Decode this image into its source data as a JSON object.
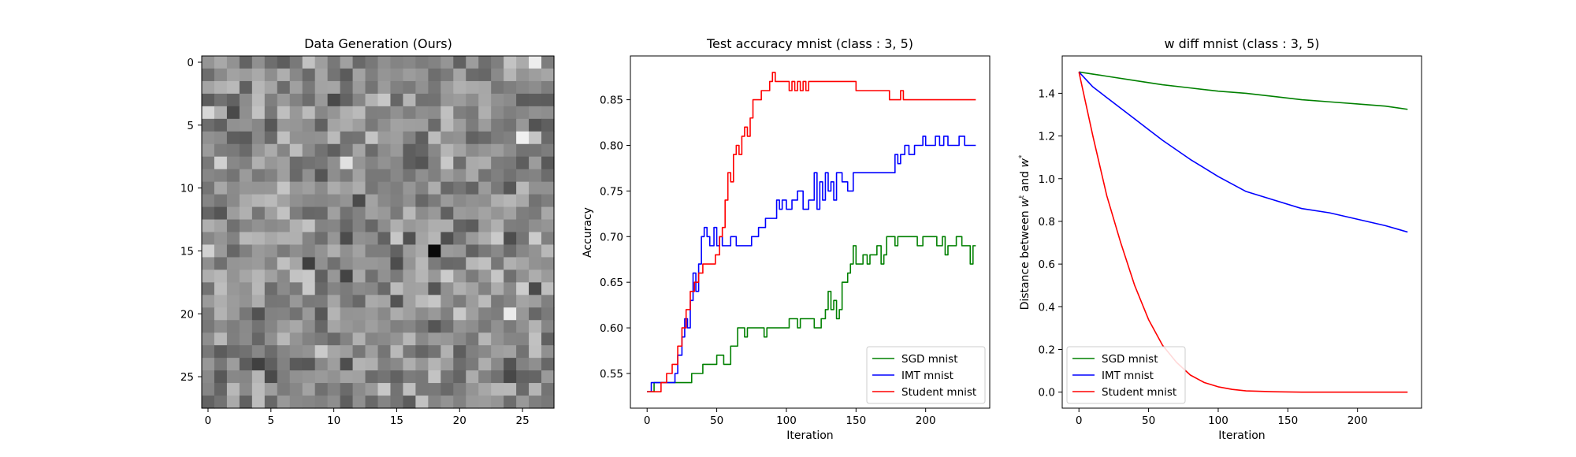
{
  "colors": {
    "sgd": "#008000",
    "imt": "#0000ff",
    "student": "#ff0000"
  },
  "chart_data": [
    {
      "type": "heatmap",
      "title": "Data Generation (Ours)",
      "rows": 28,
      "cols": 28,
      "colormap": "gray",
      "xticks": [
        "0",
        "5",
        "10",
        "15",
        "20",
        "25"
      ],
      "yticks": [
        "0",
        "5",
        "10",
        "15",
        "20",
        "25"
      ],
      "seed": 1337
    },
    {
      "type": "line",
      "title": "Test accuracy mnist (class : 3, 5)",
      "xlabel": "Iteration",
      "ylabel": "Accuracy",
      "xlim": [
        -12,
        246
      ],
      "ylim": [
        0.512,
        0.898
      ],
      "xticks": [
        "0",
        "50",
        "100",
        "150",
        "200"
      ],
      "yticks": [
        "0.55",
        "0.60",
        "0.65",
        "0.70",
        "0.75",
        "0.80",
        "0.85"
      ],
      "legend": "lower-right",
      "series": [
        {
          "name": "SGD mnist",
          "color_key": "sgd",
          "style": "step",
          "points": [
            [
              0,
              0.53
            ],
            [
              5,
              0.54
            ],
            [
              10,
              0.54
            ],
            [
              30,
              0.54
            ],
            [
              32,
              0.55
            ],
            [
              38,
              0.55
            ],
            [
              40,
              0.56
            ],
            [
              48,
              0.56
            ],
            [
              50,
              0.57
            ],
            [
              55,
              0.56
            ],
            [
              60,
              0.58
            ],
            [
              65,
              0.6
            ],
            [
              70,
              0.59
            ],
            [
              72,
              0.6
            ],
            [
              82,
              0.6
            ],
            [
              84,
              0.59
            ],
            [
              86,
              0.6
            ],
            [
              100,
              0.6
            ],
            [
              102,
              0.61
            ],
            [
              108,
              0.6
            ],
            [
              110,
              0.61
            ],
            [
              118,
              0.61
            ],
            [
              120,
              0.6
            ],
            [
              125,
              0.61
            ],
            [
              128,
              0.62
            ],
            [
              130,
              0.64
            ],
            [
              132,
              0.62
            ],
            [
              134,
              0.63
            ],
            [
              136,
              0.61
            ],
            [
              138,
              0.62
            ],
            [
              140,
              0.65
            ],
            [
              144,
              0.66
            ],
            [
              146,
              0.67
            ],
            [
              148,
              0.69
            ],
            [
              150,
              0.67
            ],
            [
              155,
              0.68
            ],
            [
              158,
              0.67
            ],
            [
              160,
              0.68
            ],
            [
              165,
              0.69
            ],
            [
              168,
              0.67
            ],
            [
              170,
              0.68
            ],
            [
              172,
              0.7
            ],
            [
              178,
              0.69
            ],
            [
              180,
              0.7
            ],
            [
              192,
              0.7
            ],
            [
              194,
              0.69
            ],
            [
              198,
              0.7
            ],
            [
              206,
              0.7
            ],
            [
              208,
              0.69
            ],
            [
              212,
              0.7
            ],
            [
              214,
              0.68
            ],
            [
              216,
              0.69
            ],
            [
              220,
              0.69
            ],
            [
              222,
              0.7
            ],
            [
              226,
              0.69
            ],
            [
              230,
              0.69
            ],
            [
              232,
              0.67
            ],
            [
              234,
              0.69
            ],
            [
              236,
              0.69
            ]
          ]
        },
        {
          "name": "IMT mnist",
          "color_key": "imt",
          "style": "step",
          "points": [
            [
              0,
              0.53
            ],
            [
              3,
              0.54
            ],
            [
              18,
              0.54
            ],
            [
              20,
              0.55
            ],
            [
              22,
              0.57
            ],
            [
              25,
              0.59
            ],
            [
              27,
              0.61
            ],
            [
              29,
              0.6
            ],
            [
              31,
              0.63
            ],
            [
              33,
              0.66
            ],
            [
              35,
              0.64
            ],
            [
              37,
              0.67
            ],
            [
              39,
              0.7
            ],
            [
              41,
              0.71
            ],
            [
              43,
              0.7
            ],
            [
              45,
              0.69
            ],
            [
              48,
              0.71
            ],
            [
              50,
              0.69
            ],
            [
              52,
              0.7
            ],
            [
              54,
              0.69
            ],
            [
              58,
              0.69
            ],
            [
              60,
              0.7
            ],
            [
              64,
              0.69
            ],
            [
              70,
              0.69
            ],
            [
              75,
              0.7
            ],
            [
              80,
              0.71
            ],
            [
              85,
              0.72
            ],
            [
              90,
              0.72
            ],
            [
              93,
              0.74
            ],
            [
              95,
              0.73
            ],
            [
              97,
              0.74
            ],
            [
              100,
              0.73
            ],
            [
              104,
              0.74
            ],
            [
              108,
              0.75
            ],
            [
              112,
              0.73
            ],
            [
              116,
              0.74
            ],
            [
              120,
              0.77
            ],
            [
              122,
              0.73
            ],
            [
              124,
              0.76
            ],
            [
              126,
              0.74
            ],
            [
              128,
              0.77
            ],
            [
              130,
              0.75
            ],
            [
              132,
              0.76
            ],
            [
              134,
              0.74
            ],
            [
              136,
              0.77
            ],
            [
              140,
              0.76
            ],
            [
              144,
              0.75
            ],
            [
              148,
              0.77
            ],
            [
              152,
              0.77
            ],
            [
              160,
              0.77
            ],
            [
              170,
              0.77
            ],
            [
              176,
              0.77
            ],
            [
              178,
              0.79
            ],
            [
              180,
              0.78
            ],
            [
              182,
              0.79
            ],
            [
              185,
              0.8
            ],
            [
              188,
              0.79
            ],
            [
              192,
              0.8
            ],
            [
              198,
              0.81
            ],
            [
              200,
              0.8
            ],
            [
              204,
              0.8
            ],
            [
              207,
              0.81
            ],
            [
              210,
              0.8
            ],
            [
              213,
              0.81
            ],
            [
              216,
              0.8
            ],
            [
              220,
              0.8
            ],
            [
              224,
              0.81
            ],
            [
              228,
              0.8
            ],
            [
              232,
              0.8
            ],
            [
              234,
              0.8
            ],
            [
              236,
              0.8
            ]
          ]
        },
        {
          "name": "Student mnist",
          "color_key": "student",
          "style": "step",
          "points": [
            [
              0,
              0.53
            ],
            [
              8,
              0.53
            ],
            [
              10,
              0.54
            ],
            [
              14,
              0.55
            ],
            [
              18,
              0.56
            ],
            [
              22,
              0.58
            ],
            [
              25,
              0.6
            ],
            [
              28,
              0.62
            ],
            [
              31,
              0.64
            ],
            [
              34,
              0.65
            ],
            [
              37,
              0.66
            ],
            [
              40,
              0.67
            ],
            [
              47,
              0.67
            ],
            [
              49,
              0.68
            ],
            [
              52,
              0.7
            ],
            [
              54,
              0.71
            ],
            [
              56,
              0.74
            ],
            [
              58,
              0.77
            ],
            [
              60,
              0.76
            ],
            [
              62,
              0.79
            ],
            [
              64,
              0.8
            ],
            [
              66,
              0.79
            ],
            [
              68,
              0.81
            ],
            [
              70,
              0.82
            ],
            [
              72,
              0.81
            ],
            [
              74,
              0.83
            ],
            [
              76,
              0.85
            ],
            [
              80,
              0.85
            ],
            [
              82,
              0.86
            ],
            [
              86,
              0.86
            ],
            [
              88,
              0.87
            ],
            [
              90,
              0.88
            ],
            [
              92,
              0.87
            ],
            [
              94,
              0.87
            ],
            [
              96,
              0.87
            ],
            [
              100,
              0.87
            ],
            [
              102,
              0.86
            ],
            [
              104,
              0.87
            ],
            [
              106,
              0.86
            ],
            [
              108,
              0.87
            ],
            [
              110,
              0.86
            ],
            [
              112,
              0.87
            ],
            [
              114,
              0.86
            ],
            [
              116,
              0.87
            ],
            [
              130,
              0.87
            ],
            [
              148,
              0.87
            ],
            [
              150,
              0.86
            ],
            [
              172,
              0.86
            ],
            [
              174,
              0.85
            ],
            [
              180,
              0.85
            ],
            [
              182,
              0.86
            ],
            [
              184,
              0.85
            ],
            [
              200,
              0.85
            ],
            [
              236,
              0.85
            ]
          ]
        }
      ]
    },
    {
      "type": "line",
      "title": "w diff mnist (class : 3, 5)",
      "xlabel": "Iteration",
      "ylabel": "Distance between w^t and w^*",
      "ylabel_parts": {
        "before": "Distance between ",
        "w1": "w",
        "sup1": "t",
        "mid": " and ",
        "w2": "w",
        "sup2": "*"
      },
      "xlim": [
        -12,
        246
      ],
      "ylim": [
        -0.075,
        1.575
      ],
      "xticks": [
        "0",
        "50",
        "100",
        "150",
        "200"
      ],
      "yticks": [
        "0.0",
        "0.2",
        "0.4",
        "0.6",
        "0.8",
        "1.0",
        "1.2",
        "1.4"
      ],
      "legend": "lower-left",
      "series": [
        {
          "name": "SGD mnist",
          "color_key": "sgd",
          "style": "smooth",
          "points": [
            [
              0,
              1.5
            ],
            [
              10,
              1.49
            ],
            [
              20,
              1.48
            ],
            [
              40,
              1.46
            ],
            [
              60,
              1.44
            ],
            [
              80,
              1.425
            ],
            [
              100,
              1.41
            ],
            [
              120,
              1.4
            ],
            [
              140,
              1.385
            ],
            [
              160,
              1.37
            ],
            [
              180,
              1.36
            ],
            [
              200,
              1.35
            ],
            [
              220,
              1.34
            ],
            [
              236,
              1.325
            ]
          ]
        },
        {
          "name": "IMT mnist",
          "color_key": "imt",
          "style": "smooth",
          "points": [
            [
              0,
              1.5
            ],
            [
              10,
              1.43
            ],
            [
              20,
              1.38
            ],
            [
              30,
              1.33
            ],
            [
              40,
              1.28
            ],
            [
              50,
              1.23
            ],
            [
              60,
              1.18
            ],
            [
              80,
              1.09
            ],
            [
              100,
              1.01
            ],
            [
              120,
              0.94
            ],
            [
              140,
              0.9
            ],
            [
              160,
              0.86
            ],
            [
              180,
              0.84
            ],
            [
              200,
              0.81
            ],
            [
              220,
              0.78
            ],
            [
              236,
              0.75
            ]
          ]
        },
        {
          "name": "Student mnist",
          "color_key": "student",
          "style": "smooth",
          "points": [
            [
              0,
              1.5
            ],
            [
              10,
              1.2
            ],
            [
              20,
              0.92
            ],
            [
              30,
              0.7
            ],
            [
              40,
              0.5
            ],
            [
              50,
              0.34
            ],
            [
              60,
              0.22
            ],
            [
              70,
              0.14
            ],
            [
              80,
              0.08
            ],
            [
              90,
              0.045
            ],
            [
              100,
              0.025
            ],
            [
              110,
              0.013
            ],
            [
              120,
              0.006
            ],
            [
              140,
              0.002
            ],
            [
              160,
              0.0
            ],
            [
              236,
              0.0
            ]
          ]
        }
      ]
    }
  ]
}
